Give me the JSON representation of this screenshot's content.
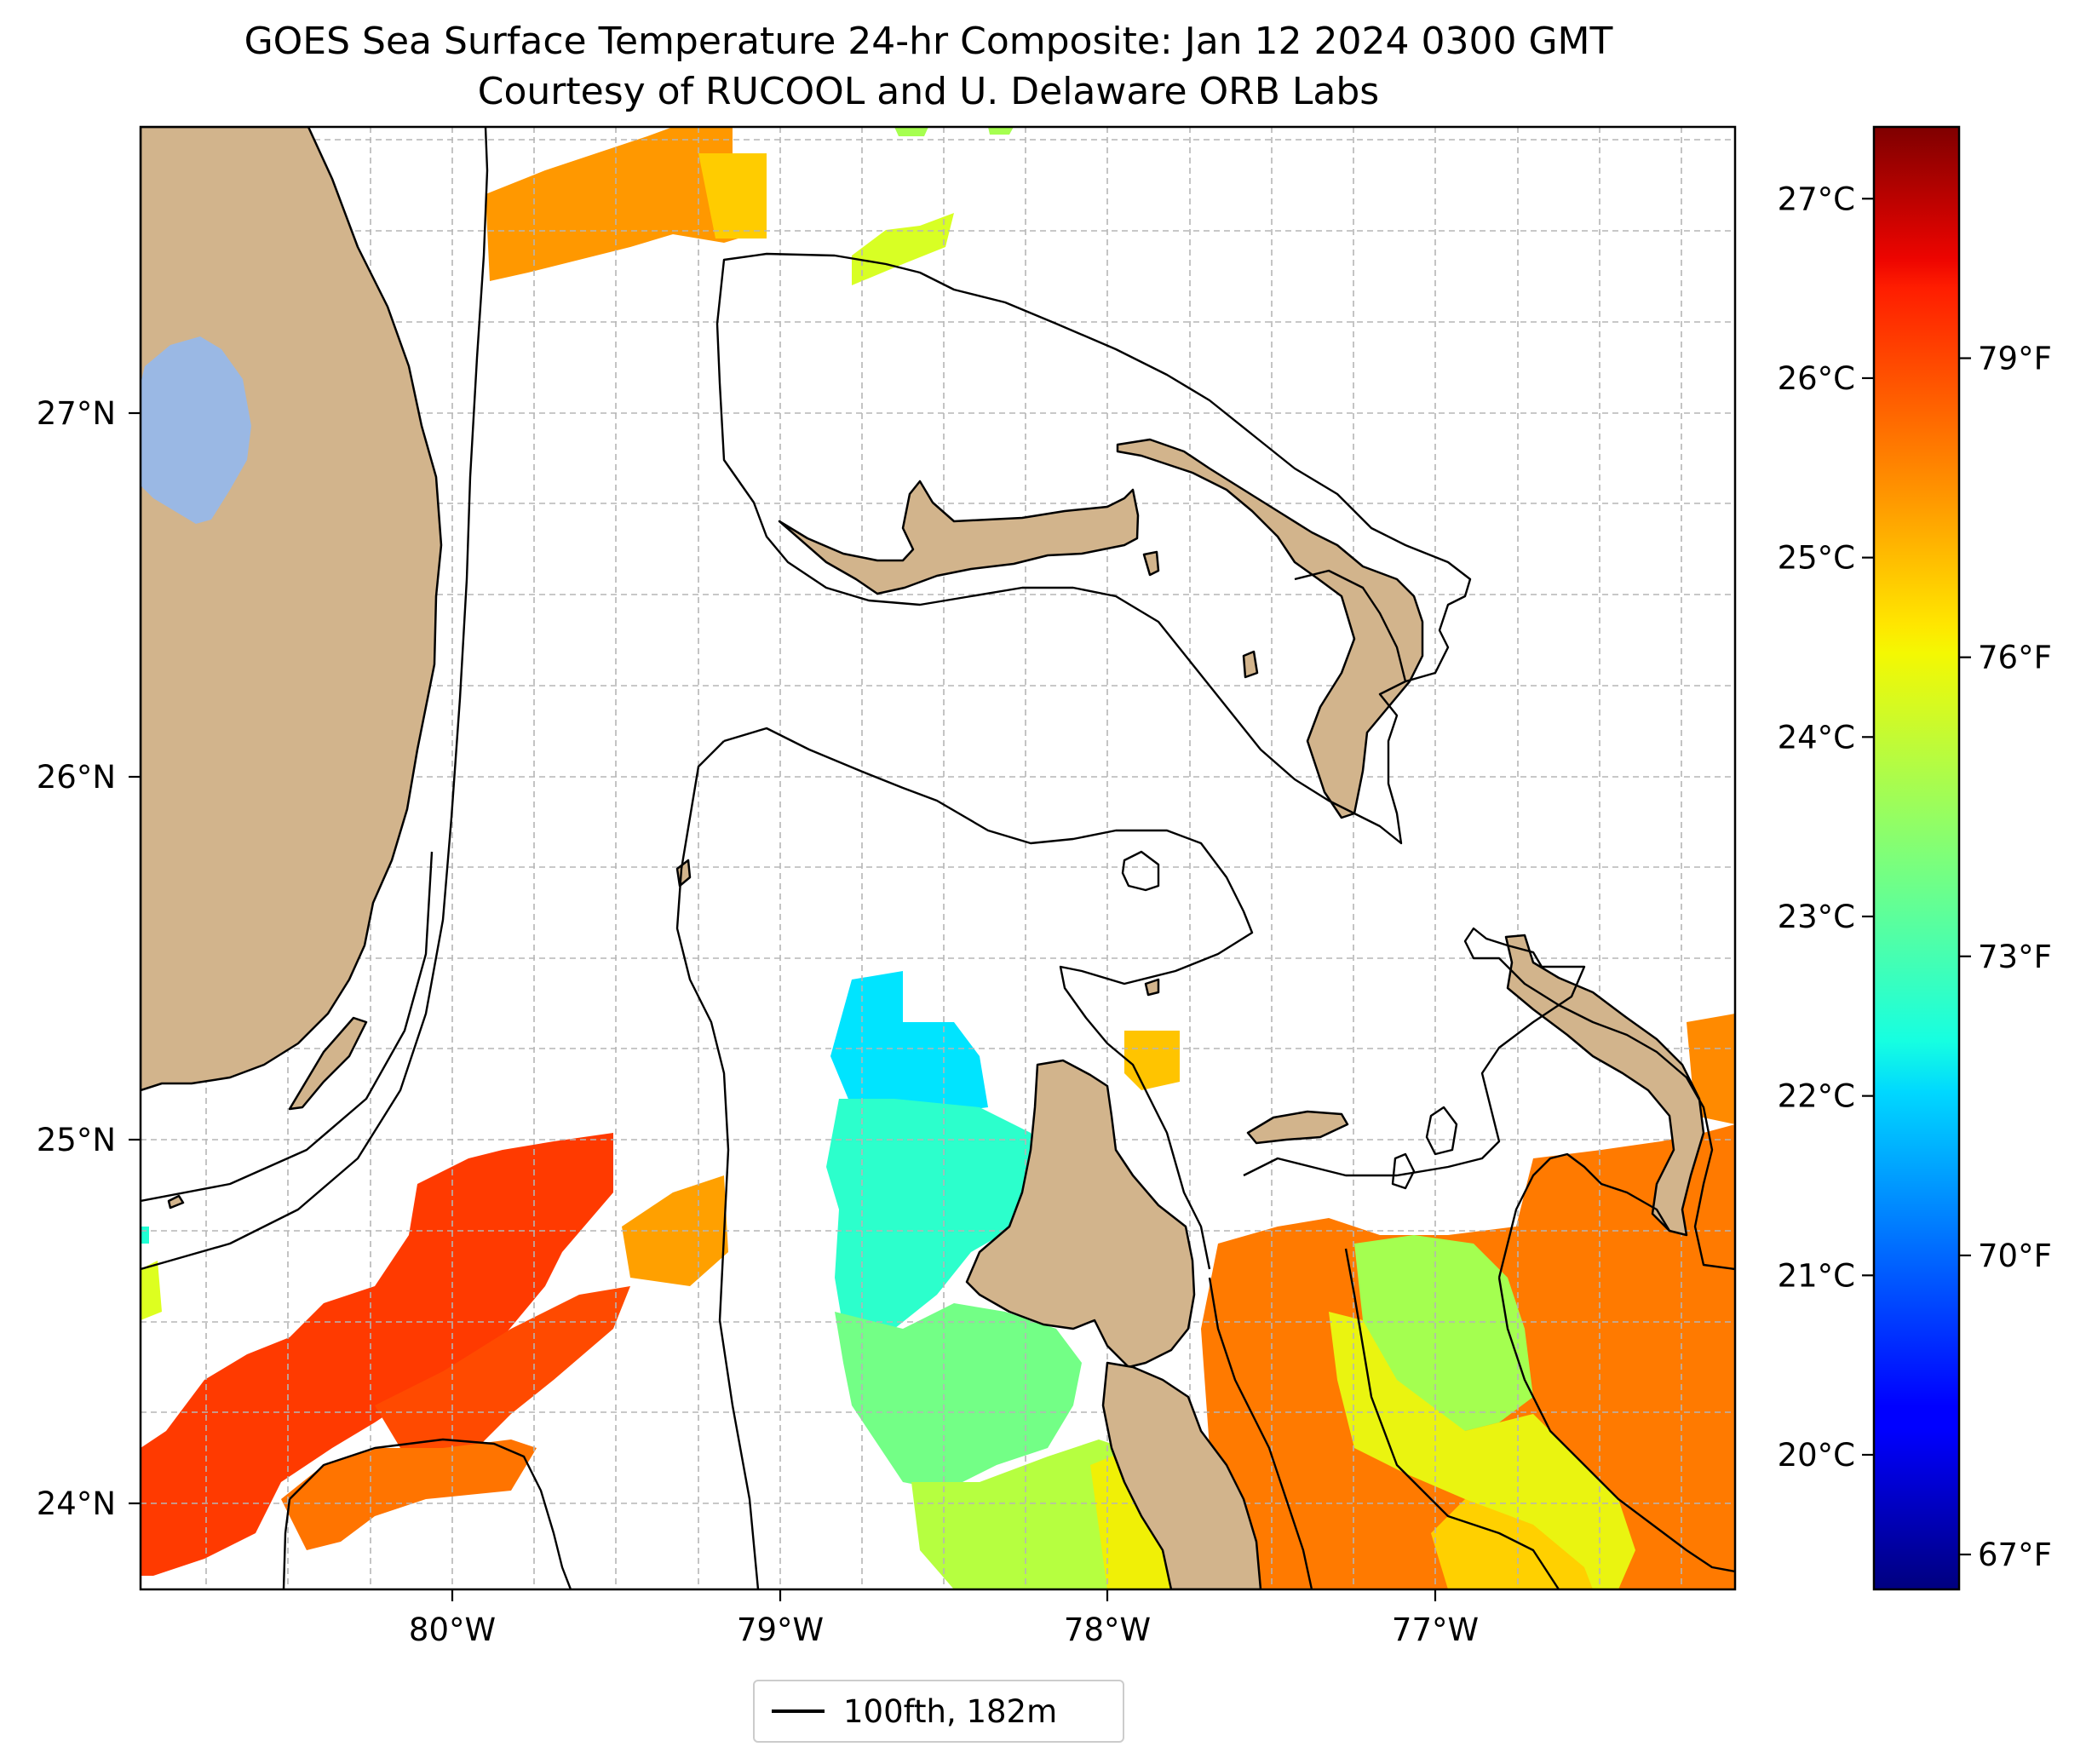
{
  "title": {
    "line1": "GOES Sea Surface Temperature 24-hr Composite: Jan 12 2024 0300 GMT",
    "line2": "Courtesy of RUCOOL and U. Delaware ORB Labs"
  },
  "map": {
    "extent": {
      "lon_min": -80.95,
      "lon_max": -76.1,
      "lat_min": 23.75,
      "lat_max": 27.8
    },
    "lon_ticks": [
      {
        "value": -80,
        "label": "80°W"
      },
      {
        "value": -79,
        "label": "79°W"
      },
      {
        "value": -78,
        "label": "78°W"
      },
      {
        "value": -77,
        "label": "77°W"
      }
    ],
    "lat_ticks": [
      {
        "value": 27,
        "label": "27°N"
      },
      {
        "value": 26,
        "label": "26°N"
      },
      {
        "value": 25,
        "label": "25°N"
      },
      {
        "value": 24,
        "label": "24°N"
      }
    ],
    "gridlines": "dashed",
    "colors": {
      "land": "#d2b48c",
      "lake": "#9ab8e4",
      "coast": "#000000",
      "grid": "#b5b5b5"
    }
  },
  "colorbar": {
    "colormap": "jet",
    "celsius_range": [
      19.25,
      27.4
    ],
    "celsius_ticks": [
      "20°C",
      "21°C",
      "22°C",
      "23°C",
      "24°C",
      "25°C",
      "26°C",
      "27°C"
    ],
    "fahrenheit_ticks": [
      "67°F",
      "70°F",
      "73°F",
      "76°F",
      "79°F"
    ],
    "fahrenheit_values": [
      67,
      70,
      73,
      76,
      79
    ]
  },
  "legend": {
    "label": "100fth, 182m"
  }
}
